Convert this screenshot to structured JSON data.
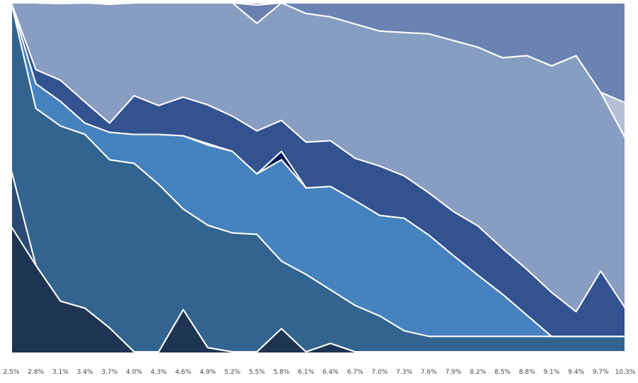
{
  "chart_data": {
    "type": "area",
    "stacked": true,
    "normalized": true,
    "x": [
      "2.5%",
      "2.8%",
      "3.1%",
      "3.4%",
      "3.7%",
      "4.0%",
      "4.3%",
      "4.6%",
      "4.9%",
      "5.2%",
      "5.5%",
      "5.8%",
      "6.1%",
      "6.4%",
      "6.7%",
      "7.0%",
      "7.3%",
      "7.6%",
      "7.9%",
      "8.2%",
      "8.5%",
      "8.8%",
      "9.1%",
      "9.4%",
      "9.7%",
      "10.3%"
    ],
    "ylim": [
      0,
      1
    ],
    "grid": false,
    "legend": "none",
    "series": [
      {
        "color": "#0d1a2e",
        "values": [
          0.004,
          0.004,
          0.004,
          0.004,
          0.004,
          0.004,
          0.004,
          0.004,
          0.004,
          0.004,
          0.004,
          0.004,
          0.004,
          0.004,
          0.004,
          0.004,
          0.004,
          0.004,
          0.004,
          0.004,
          0.004,
          0.004,
          0.004,
          0.004,
          0.004,
          0.004
        ]
      },
      {
        "color": "#1e3552",
        "values": [
          0.36,
          0.25,
          0.148,
          0.128,
          0.072,
          0.004,
          0.004,
          0.124,
          0.016,
          0.004,
          0.004,
          0.07,
          0.004,
          0.028,
          0.004,
          0.004,
          0.004,
          0.004,
          0.004,
          0.004,
          0.004,
          0.004,
          0.004,
          0.004,
          0.004,
          0.004
        ]
      },
      {
        "color": "#2a4a73",
        "values": [
          0.16,
          0.0,
          0.0,
          0.0,
          0.0,
          0.0,
          0.0,
          0.0,
          0.0,
          0.0,
          0.0,
          0.0,
          0.0,
          0.0,
          0.0,
          0.0,
          0.0,
          0.0,
          0.0,
          0.0,
          0.0,
          0.0,
          0.0,
          0.0,
          0.0,
          0.0
        ]
      },
      {
        "color": "#33648f",
        "values": [
          0.48,
          0.446,
          0.498,
          0.494,
          0.478,
          0.536,
          0.476,
          0.286,
          0.348,
          0.338,
          0.334,
          0.192,
          0.22,
          0.152,
          0.132,
          0.102,
          0.06,
          0.044,
          0.044,
          0.044,
          0.044,
          0.044,
          0.044,
          0.044,
          0.044,
          0.044
        ]
      },
      {
        "color": "#4682c0",
        "values": [
          0.0,
          0.07,
          0.07,
          0.032,
          0.078,
          0.082,
          0.142,
          0.208,
          0.228,
          0.232,
          0.172,
          0.288,
          0.246,
          0.294,
          0.298,
          0.286,
          0.32,
          0.288,
          0.23,
          0.174,
          0.12,
          0.06,
          0.0,
          0.0,
          0.0,
          0.0
        ]
      },
      {
        "color": "#0b1c5a",
        "values": [
          0.0,
          0.0,
          0.0,
          0.0,
          0.0,
          0.0,
          0.0,
          0.0,
          0.004,
          0.0,
          0.0,
          0.024,
          0.0,
          0.0,
          0.0,
          0.0,
          0.0,
          0.0,
          0.0,
          0.0,
          0.0,
          0.0,
          0.0,
          0.0,
          0.0,
          0.0
        ]
      },
      {
        "color": "#325290",
        "values": [
          0.0,
          0.04,
          0.06,
          0.06,
          0.026,
          0.11,
          0.082,
          0.11,
          0.11,
          0.1,
          0.122,
          0.088,
          0.13,
          0.13,
          0.12,
          0.14,
          0.12,
          0.12,
          0.125,
          0.14,
          0.13,
          0.13,
          0.125,
          0.07,
          0.186,
          0.08
        ]
      },
      {
        "color": "#889dc2",
        "values": [
          0.0,
          0.24,
          0.218,
          0.282,
          0.338,
          0.264,
          0.292,
          0.268,
          0.29,
          0.33,
          0.306,
          0.334,
          0.366,
          0.352,
          0.382,
          0.384,
          0.408,
          0.452,
          0.486,
          0.508,
          0.542,
          0.608,
          0.644,
          0.728,
          0.508,
          0.484
        ]
      },
      {
        "color": "#6a81b0",
        "values": [
          0.0,
          0.0,
          0.0,
          0.0,
          0.004,
          0.0,
          0.004,
          0.0,
          0.0,
          0.0,
          0.052,
          0.0,
          0.0,
          0.0,
          0.0,
          0.0,
          0.0,
          0.0,
          0.0,
          0.0,
          0.0,
          0.0,
          0.0,
          0.0,
          0.0,
          0.0
        ]
      },
      {
        "color": "#8a9dc4",
        "values": [
          0.0,
          0.0,
          0.0,
          0.0,
          0.0,
          0.0,
          0.0,
          0.0,
          0.0,
          0.0,
          0.0,
          0.0,
          0.0,
          0.0,
          0.0,
          0.0,
          0.0,
          0.0,
          0.0,
          0.0,
          0.0,
          0.0,
          0.0,
          0.0,
          0.0,
          0.0
        ]
      },
      {
        "color": "#b5c0d6",
        "values": [
          0.0,
          0.0,
          0.0,
          0.0,
          0.0,
          0.0,
          0.0,
          0.0,
          0.0,
          0.0,
          0.0,
          0.0,
          0.0,
          0.0,
          0.0,
          0.0,
          0.0,
          0.0,
          0.0,
          0.0,
          0.0,
          0.0,
          0.0,
          0.0,
          0.0,
          0.1
        ]
      },
      {
        "color": "#6b82b2",
        "values": [
          0.0,
          0.0,
          0.0,
          0.0,
          0.0,
          0.0,
          0.0,
          0.0,
          0.0,
          0.0,
          0.006,
          0.03,
          0.052,
          0.04,
          0.06,
          0.08,
          0.084,
          0.088,
          0.107,
          0.13,
          0.16,
          0.154,
          0.183,
          0.154,
          0.254,
          0.284
        ]
      }
    ]
  }
}
